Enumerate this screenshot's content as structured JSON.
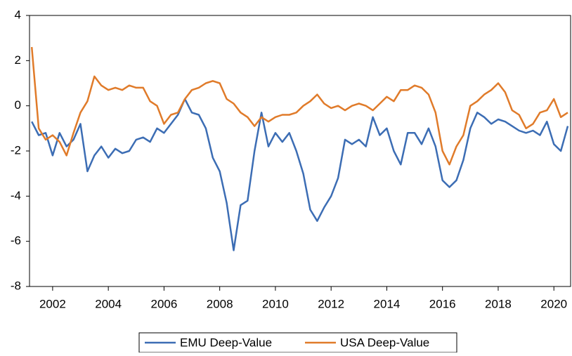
{
  "chart_data": {
    "type": "line",
    "x": [
      2001.25,
      2001.5,
      2001.75,
      2002,
      2002.25,
      2002.5,
      2002.75,
      2003,
      2003.25,
      2003.5,
      2003.75,
      2004,
      2004.25,
      2004.5,
      2004.75,
      2005,
      2005.25,
      2005.5,
      2005.75,
      2006,
      2006.25,
      2006.5,
      2006.75,
      2007,
      2007.25,
      2007.5,
      2007.75,
      2008,
      2008.25,
      2008.5,
      2008.75,
      2009,
      2009.25,
      2009.5,
      2009.75,
      2010,
      2010.25,
      2010.5,
      2010.75,
      2011,
      2011.25,
      2011.5,
      2011.75,
      2012,
      2012.25,
      2012.5,
      2012.75,
      2013,
      2013.25,
      2013.5,
      2013.75,
      2014,
      2014.25,
      2014.5,
      2014.75,
      2015,
      2015.25,
      2015.5,
      2015.75,
      2016,
      2016.25,
      2016.5,
      2016.75,
      2017,
      2017.25,
      2017.5,
      2017.75,
      2018,
      2018.25,
      2018.5,
      2018.75,
      2019,
      2019.25,
      2019.5,
      2019.75,
      2020,
      2020.25,
      2020.5
    ],
    "series": [
      {
        "name": "EMU Deep-Value",
        "color": "#3c6db4",
        "values": [
          -0.7,
          -1.3,
          -1.2,
          -2.2,
          -1.2,
          -1.8,
          -1.5,
          -0.8,
          -2.9,
          -2.2,
          -1.8,
          -2.3,
          -1.9,
          -2.1,
          -2.0,
          -1.5,
          -1.4,
          -1.6,
          -1.0,
          -1.2,
          -0.8,
          -0.4,
          0.3,
          -0.3,
          -0.4,
          -1.0,
          -2.3,
          -2.9,
          -4.3,
          -6.4,
          -4.4,
          -4.2,
          -2.0,
          -0.3,
          -1.8,
          -1.2,
          -1.6,
          -1.2,
          -2.0,
          -3.0,
          -4.6,
          -5.1,
          -4.5,
          -4.0,
          -3.2,
          -1.5,
          -1.7,
          -1.5,
          -1.8,
          -0.5,
          -1.3,
          -1.0,
          -2.0,
          -2.6,
          -1.2,
          -1.2,
          -1.7,
          -1.0,
          -1.8,
          -3.3,
          -3.6,
          -3.3,
          -2.4,
          -1.0,
          -0.3,
          -0.5,
          -0.8,
          -0.6,
          -0.7,
          -0.9,
          -1.1,
          -1.2,
          -1.1,
          -1.3,
          -0.7,
          -1.7,
          -2.0,
          -0.9
        ]
      },
      {
        "name": "USA Deep-Value",
        "color": "#e07b2a",
        "values": [
          2.6,
          -1.0,
          -1.5,
          -1.3,
          -1.6,
          -2.2,
          -1.2,
          -0.3,
          0.2,
          1.3,
          0.9,
          0.7,
          0.8,
          0.7,
          0.9,
          0.8,
          0.8,
          0.2,
          0.0,
          -0.8,
          -0.4,
          -0.3,
          0.3,
          0.7,
          0.8,
          1.0,
          1.1,
          1.0,
          0.3,
          0.1,
          -0.3,
          -0.5,
          -0.9,
          -0.5,
          -0.7,
          -0.5,
          -0.4,
          -0.4,
          -0.3,
          0.0,
          0.2,
          0.5,
          0.1,
          -0.1,
          0.0,
          -0.2,
          0.0,
          0.1,
          0.0,
          -0.2,
          0.1,
          0.4,
          0.2,
          0.7,
          0.7,
          0.9,
          0.8,
          0.5,
          -0.3,
          -2.0,
          -2.6,
          -1.8,
          -1.3,
          0.0,
          0.2,
          0.5,
          0.7,
          1.0,
          0.6,
          -0.2,
          -0.4,
          -1.0,
          -0.8,
          -0.3,
          -0.2,
          0.3,
          -0.5,
          -0.3
        ]
      }
    ],
    "xlim": [
      2001.17,
      2020.6
    ],
    "xticks": [
      2002,
      2004,
      2006,
      2008,
      2010,
      2012,
      2014,
      2016,
      2018,
      2020
    ],
    "ylim": [
      -8,
      4
    ],
    "yticks": [
      -8,
      -6,
      -4,
      -2,
      0,
      2,
      4
    ]
  }
}
